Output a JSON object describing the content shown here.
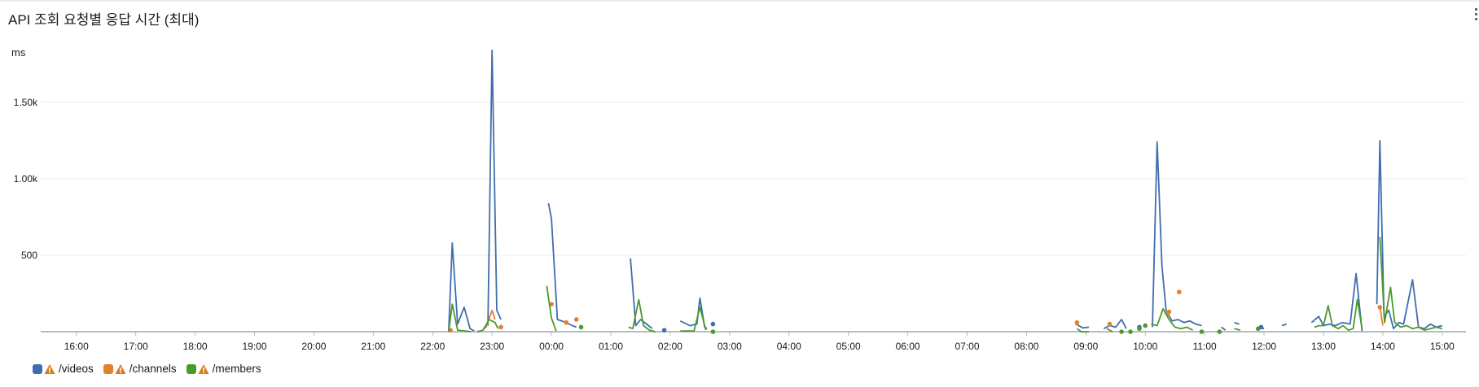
{
  "panel": {
    "title": "API 조회 요청별 응답 시간 (최대)",
    "unit": "ms"
  },
  "legend": [
    {
      "label": "/videos",
      "color": "#3f6db0",
      "icon": "warning-icon"
    },
    {
      "label": "/channels",
      "color": "#e3802e",
      "icon": "warning-icon"
    },
    {
      "label": "/members",
      "color": "#4c9a2a",
      "icon": "warning-icon"
    }
  ],
  "colors": {
    "grid": "#e9ebed",
    "axis": "#b5bcc4",
    "warning": "#d97b1a"
  },
  "chart_data": {
    "type": "line",
    "title": "API 조회 요청별 응답 시간 (최대)",
    "ylabel": "ms",
    "ylim": [
      0,
      1850
    ],
    "yticks": [
      500,
      1000,
      1500
    ],
    "ytick_labels": [
      "500",
      "1.00k",
      "1.50k"
    ],
    "xlim": [
      15.4,
      39.4
    ],
    "xticks": [
      16,
      17,
      18,
      19,
      20,
      21,
      22,
      23,
      24,
      25,
      26,
      27,
      28,
      29,
      30,
      31,
      32,
      33,
      34,
      35,
      36,
      37,
      38,
      39
    ],
    "xtick_labels": [
      "16:00",
      "17:00",
      "18:00",
      "19:00",
      "20:00",
      "21:00",
      "22:00",
      "23:00",
      "00:00",
      "01:00",
      "02:00",
      "03:00",
      "04:00",
      "05:00",
      "06:00",
      "07:00",
      "08:00",
      "09:00",
      "10:00",
      "11:00",
      "12:00",
      "13:00",
      "14:00",
      "15:00"
    ],
    "grid": true,
    "legend_position": "bottom-left",
    "series": [
      {
        "name": "/videos",
        "segments": [
          [
            [
              22.27,
              0
            ],
            [
              22.33,
              580
            ],
            [
              22.42,
              50
            ],
            [
              22.53,
              160
            ],
            [
              22.63,
              20
            ],
            [
              22.7,
              5
            ]
          ],
          [
            [
              22.93,
              40
            ],
            [
              23.0,
              1840
            ],
            [
              23.08,
              140
            ],
            [
              23.15,
              80
            ]
          ],
          [
            [
              23.95,
              840
            ],
            [
              24.0,
              740
            ],
            [
              24.1,
              80
            ],
            [
              24.25,
              60
            ],
            [
              24.35,
              40
            ],
            [
              24.42,
              30
            ]
          ],
          [
            [
              25.33,
              480
            ],
            [
              25.42,
              40
            ],
            [
              25.5,
              80
            ],
            [
              25.6,
              50
            ],
            [
              25.7,
              20
            ]
          ],
          [
            [
              26.17,
              70
            ],
            [
              26.33,
              40
            ],
            [
              26.45,
              50
            ],
            [
              26.5,
              220
            ],
            [
              26.58,
              30
            ],
            [
              26.62,
              20
            ]
          ],
          [
            [
              32.83,
              50
            ],
            [
              32.95,
              25
            ],
            [
              33.05,
              30
            ]
          ],
          [
            [
              33.3,
              20
            ],
            [
              33.4,
              40
            ],
            [
              33.5,
              30
            ],
            [
              33.6,
              80
            ],
            [
              33.68,
              20
            ]
          ],
          [
            [
              34.12,
              30
            ],
            [
              34.2,
              1240
            ],
            [
              34.28,
              430
            ],
            [
              34.35,
              140
            ],
            [
              34.45,
              70
            ],
            [
              34.55,
              80
            ],
            [
              34.65,
              60
            ],
            [
              34.75,
              70
            ],
            [
              34.85,
              50
            ],
            [
              34.95,
              40
            ]
          ],
          [
            [
              35.28,
              30
            ],
            [
              35.35,
              10
            ]
          ],
          [
            [
              35.5,
              60
            ],
            [
              35.58,
              50
            ]
          ],
          [
            [
              35.9,
              30
            ],
            [
              36.0,
              20
            ]
          ],
          [
            [
              36.3,
              40
            ],
            [
              36.38,
              50
            ]
          ],
          [
            [
              36.8,
              60
            ],
            [
              36.92,
              100
            ],
            [
              37.0,
              40
            ],
            [
              37.1,
              50
            ],
            [
              37.2,
              40
            ],
            [
              37.32,
              60
            ],
            [
              37.45,
              50
            ],
            [
              37.55,
              380
            ],
            [
              37.65,
              5
            ]
          ],
          [
            [
              37.9,
              180
            ],
            [
              37.95,
              1250
            ],
            [
              38.02,
              100
            ],
            [
              38.1,
              140
            ],
            [
              38.18,
              20
            ],
            [
              38.27,
              60
            ],
            [
              38.35,
              50
            ],
            [
              38.5,
              340
            ],
            [
              38.6,
              30
            ],
            [
              38.7,
              20
            ],
            [
              38.8,
              50
            ],
            [
              38.9,
              30
            ],
            [
              39.0,
              40
            ]
          ]
        ],
        "points": [
          [
            25.9,
            10
          ],
          [
            26.72,
            50
          ],
          [
            33.9,
            30
          ],
          [
            35.95,
            30
          ]
        ]
      },
      {
        "name": "/channels",
        "segments": [
          [
            [
              22.85,
              20
            ],
            [
              22.9,
              30
            ],
            [
              23.0,
              140
            ],
            [
              23.05,
              80
            ]
          ],
          [
            [
              34.35,
              130
            ],
            [
              34.4,
              100
            ]
          ],
          [
            [
              37.95,
              170
            ],
            [
              38.0,
              40
            ]
          ]
        ],
        "points": [
          [
            22.3,
            10
          ],
          [
            23.15,
            30
          ],
          [
            24.0,
            180
          ],
          [
            24.25,
            60
          ],
          [
            24.42,
            80
          ],
          [
            32.85,
            60
          ],
          [
            33.4,
            50
          ],
          [
            34.4,
            130
          ],
          [
            34.57,
            260
          ],
          [
            37.95,
            160
          ]
        ]
      },
      {
        "name": "/members",
        "segments": [
          [
            [
              22.27,
              0
            ],
            [
              22.33,
              180
            ],
            [
              22.42,
              10
            ],
            [
              22.55,
              5
            ],
            [
              22.65,
              0
            ]
          ],
          [
            [
              22.75,
              0
            ],
            [
              22.85,
              10
            ],
            [
              22.95,
              80
            ],
            [
              23.05,
              60
            ],
            [
              23.1,
              20
            ]
          ],
          [
            [
              23.92,
              300
            ],
            [
              24.0,
              90
            ],
            [
              24.08,
              5
            ]
          ],
          [
            [
              25.3,
              30
            ],
            [
              25.37,
              20
            ],
            [
              25.47,
              210
            ],
            [
              25.55,
              40
            ],
            [
              25.65,
              10
            ],
            [
              25.75,
              0
            ]
          ],
          [
            [
              26.17,
              5
            ],
            [
              26.4,
              5
            ],
            [
              26.5,
              160
            ],
            [
              26.6,
              10
            ]
          ],
          [
            [
              32.85,
              20
            ],
            [
              32.92,
              0
            ],
            [
              33.05,
              0
            ]
          ],
          [
            [
              33.35,
              20
            ],
            [
              33.45,
              0
            ]
          ],
          [
            [
              34.1,
              50
            ],
            [
              34.2,
              40
            ],
            [
              34.3,
              150
            ],
            [
              34.4,
              80
            ],
            [
              34.5,
              30
            ],
            [
              34.6,
              20
            ],
            [
              34.7,
              30
            ],
            [
              34.8,
              10
            ]
          ],
          [
            [
              35.5,
              20
            ],
            [
              35.6,
              10
            ]
          ],
          [
            [
              36.85,
              30
            ],
            [
              36.93,
              40
            ],
            [
              37.0,
              40
            ],
            [
              37.08,
              170
            ],
            [
              37.15,
              40
            ],
            [
              37.25,
              20
            ],
            [
              37.33,
              40
            ],
            [
              37.42,
              10
            ],
            [
              37.5,
              20
            ],
            [
              37.57,
              210
            ],
            [
              37.65,
              20
            ]
          ],
          [
            [
              37.95,
              620
            ],
            [
              38.03,
              60
            ],
            [
              38.13,
              290
            ],
            [
              38.2,
              60
            ],
            [
              38.3,
              30
            ],
            [
              38.4,
              40
            ],
            [
              38.5,
              20
            ],
            [
              38.6,
              30
            ],
            [
              38.7,
              10
            ],
            [
              38.8,
              20
            ],
            [
              38.9,
              30
            ],
            [
              39.0,
              20
            ]
          ]
        ],
        "points": [
          [
            24.5,
            30
          ],
          [
            26.72,
            0
          ],
          [
            33.6,
            0
          ],
          [
            33.75,
            0
          ],
          [
            33.9,
            20
          ],
          [
            34.0,
            40
          ],
          [
            34.95,
            0
          ],
          [
            35.25,
            0
          ],
          [
            35.9,
            20
          ]
        ]
      }
    ]
  }
}
